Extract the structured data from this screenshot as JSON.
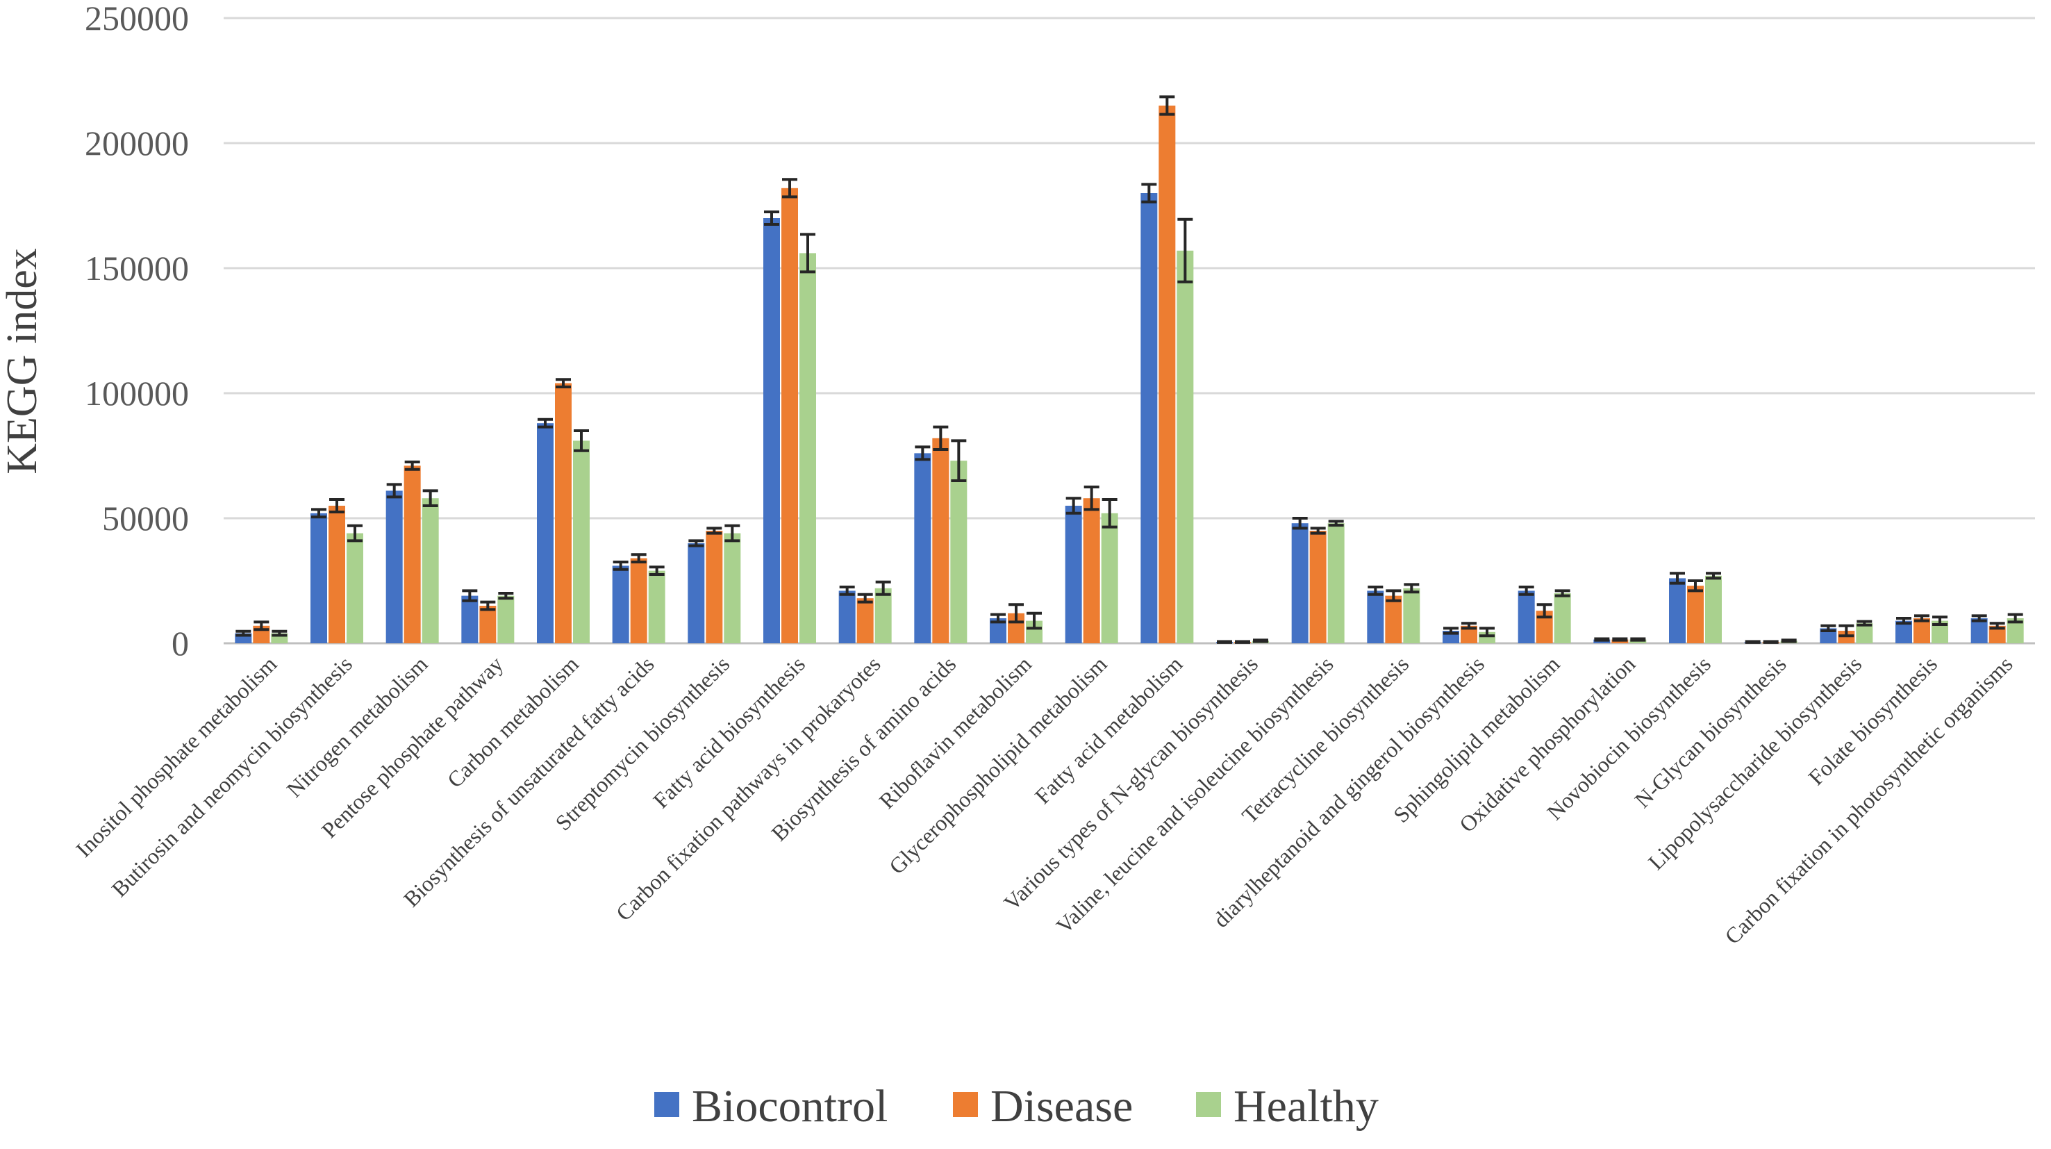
{
  "chart_data": {
    "type": "bar",
    "title": "",
    "xlabel": "",
    "ylabel": "KEGG index",
    "ylim": [
      0,
      250000
    ],
    "yticks": [
      0,
      50000,
      100000,
      150000,
      200000,
      250000
    ],
    "ytick_labels": [
      "0",
      "50000",
      "100000",
      "150000",
      "200000",
      "250000"
    ],
    "grid": true,
    "legend_position": "bottom",
    "categories": [
      "Inositol phosphate metabolism",
      "Butirosin and neomycin biosynthesis",
      "Nitrogen metabolism",
      "Pentose phosphate pathway",
      "Carbon metabolism",
      "Biosynthesis of unsaturated fatty acids",
      "Streptomycin biosynthesis",
      "Fatty acid biosynthesis",
      "Carbon fixation pathways in prokaryotes",
      "Biosynthesis of amino acids",
      "Riboflavin metabolism",
      "Glycerophospholipid metabolism",
      "Fatty acid metabolism",
      "Various types of N-glycan biosynthesis",
      "Valine, leucine and isoleucine biosynthesis",
      "Tetracycline biosynthesis",
      "diarylheptanoid and gingerol biosynthesis",
      "Sphingolipid metabolism",
      "Oxidative phosphorylation",
      "Novobiocin biosynthesis",
      "N-Glycan biosynthesis",
      "Lipopolysaccharide biosynthesis",
      "Folate biosynthesis",
      "Carbon fixation in photosynthetic organisms"
    ],
    "series": [
      {
        "name": "Biocontrol",
        "color": "#4472c4",
        "values": [
          4000,
          52000,
          61000,
          19000,
          88000,
          31000,
          40000,
          170000,
          21000,
          76000,
          10000,
          55000,
          180000,
          500,
          48000,
          21000,
          5000,
          21000,
          1500,
          26000,
          500,
          6000,
          9000,
          10000
        ],
        "errors": [
          800,
          1500,
          2500,
          2000,
          1500,
          1500,
          1000,
          2500,
          1500,
          2500,
          1500,
          3000,
          3500,
          200,
          2000,
          1500,
          1000,
          1500,
          300,
          2000,
          200,
          1000,
          1000,
          1000
        ]
      },
      {
        "name": "Disease",
        "color": "#ed7d31",
        "values": [
          7000,
          55000,
          71000,
          15000,
          104000,
          34000,
          45000,
          182000,
          18000,
          82000,
          12000,
          58000,
          215000,
          500,
          45000,
          19000,
          7000,
          13000,
          1500,
          23000,
          500,
          5000,
          10000,
          7000
        ],
        "errors": [
          1500,
          2500,
          1500,
          1500,
          1500,
          1500,
          1000,
          3500,
          1500,
          4500,
          3500,
          4500,
          3500,
          200,
          1000,
          2000,
          1000,
          2500,
          300,
          2000,
          200,
          2000,
          1000,
          1000
        ]
      },
      {
        "name": "Healthy",
        "color": "#a9d18e",
        "values": [
          4000,
          44000,
          58000,
          19000,
          81000,
          29000,
          44000,
          156000,
          22000,
          73000,
          9000,
          52000,
          157000,
          1000,
          48000,
          22000,
          4500,
          20000,
          1500,
          27000,
          1000,
          8000,
          9000,
          10000
        ],
        "errors": [
          800,
          3000,
          3000,
          1000,
          4000,
          1500,
          3000,
          7500,
          2500,
          8000,
          3000,
          5500,
          12500,
          300,
          800,
          1500,
          1500,
          1000,
          300,
          1000,
          300,
          700,
          1500,
          1500
        ]
      }
    ]
  }
}
